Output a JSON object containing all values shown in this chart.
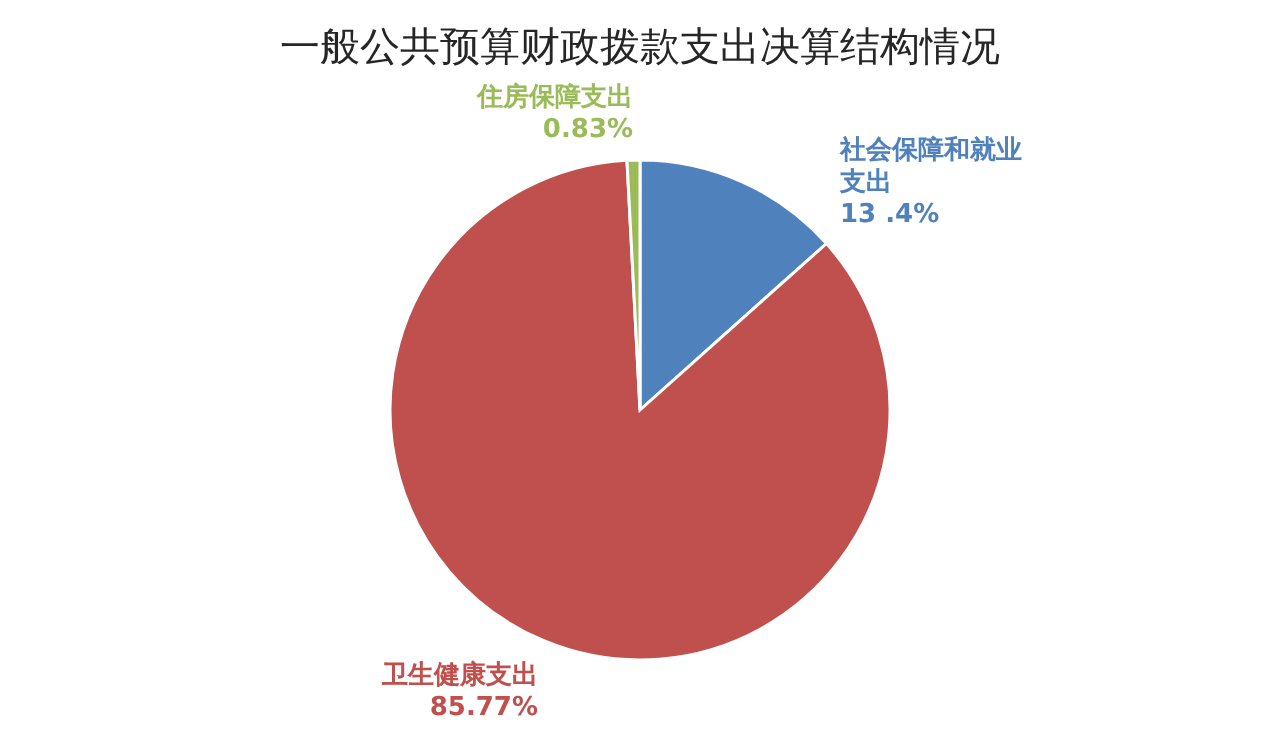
{
  "chart_data": {
    "type": "pie",
    "title": "一般公共预算财政拨款支出决算结构情况",
    "categories": [
      "社会保障和就业支出",
      "卫生健康支出",
      "住房保障支出"
    ],
    "values": [
      13.4,
      85.77,
      0.83
    ],
    "colors": [
      "#4f81bd",
      "#c0504d",
      "#9bbb59"
    ],
    "value_labels": [
      "13 .4%",
      "85.77%",
      "0.83%"
    ]
  }
}
